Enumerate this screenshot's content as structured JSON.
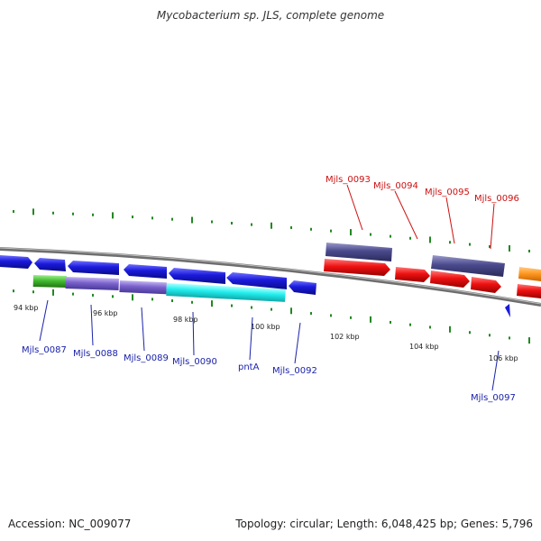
{
  "title": "Mycobacterium sp. JLS, complete genome",
  "accession_text": "Accession: NC_009077",
  "summary_text": "Topology: circular; Length: 6,048,425 bp; Genes: 5,796",
  "colors": {
    "backbone": "#888888",
    "tick": "#228822",
    "blue": "#1a1adc",
    "red": "#ee1111",
    "darkpurple": "#4a4a8c",
    "purple": "#7a62cc",
    "green": "#44bb33",
    "cyan": "#22eeee",
    "orange": "#ff9922",
    "label_blue": "#1a22aa",
    "label_red": "#cc1111"
  },
  "ruler_labels": [
    "94 kbp",
    "96 kbp",
    "98 kbp",
    "100 kbp",
    "102 kbp",
    "104 kbp",
    "106 kbp"
  ],
  "gene_labels": {
    "bottom": [
      "Mjls_0087",
      "Mjls_0088",
      "Mjls_0089",
      "Mjls_0090",
      "pntA",
      "Mjls_0092",
      "Mjls_0097"
    ],
    "top": [
      "Mjls_0093",
      "Mjls_0094",
      "Mjls_0095",
      "Mjls_0096"
    ]
  },
  "features": [
    {
      "type": "blue-arrow",
      "color": "blue",
      "dir": "right"
    },
    {
      "type": "blue-arrow",
      "color": "blue",
      "dir": "left"
    },
    {
      "type": "blue-arrow",
      "color": "blue",
      "dir": "left"
    },
    {
      "type": "blue-arrow",
      "color": "blue",
      "dir": "left"
    },
    {
      "type": "blue-arrow",
      "color": "blue",
      "dir": "left"
    },
    {
      "type": "blue-arrow",
      "color": "blue",
      "dir": "left"
    },
    {
      "type": "blue-arrow",
      "color": "blue",
      "dir": "left"
    },
    {
      "type": "red-arrow",
      "color": "red",
      "dir": "right"
    },
    {
      "type": "red-arrow",
      "color": "red",
      "dir": "right"
    },
    {
      "type": "red-arrow",
      "color": "red",
      "dir": "right"
    },
    {
      "type": "red-arrow",
      "color": "red",
      "dir": "right"
    },
    {
      "type": "red-arrow",
      "color": "red",
      "dir": "right"
    },
    {
      "type": "orange-arrow",
      "color": "orange",
      "dir": "right"
    }
  ]
}
